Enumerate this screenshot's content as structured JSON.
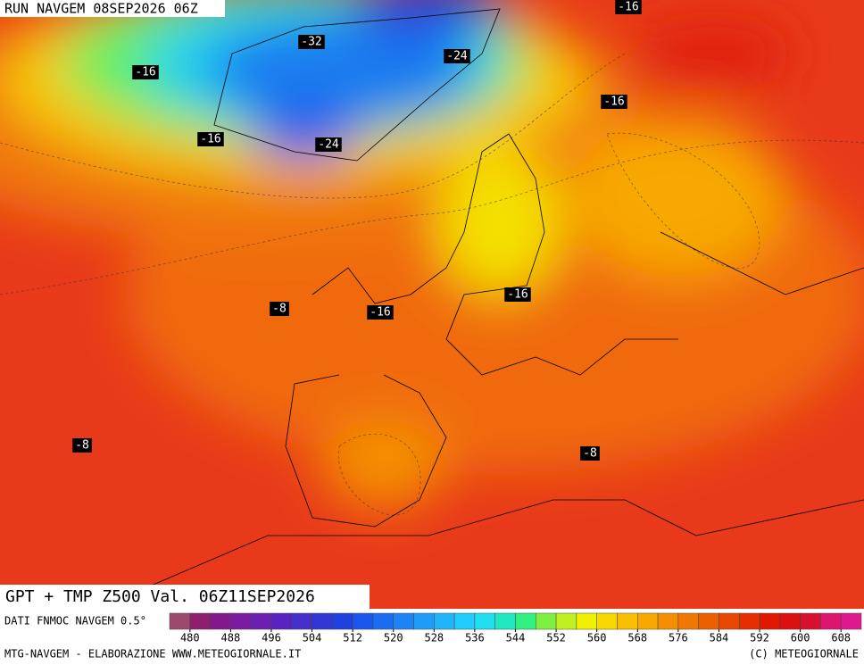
{
  "header": {
    "title": "RUN NAVGEM 08SEP2026 06Z"
  },
  "map": {
    "contour_labels": [
      -16,
      -32,
      -24,
      -16,
      -16,
      -16,
      -24,
      -16,
      -8,
      -16,
      -8,
      -8
    ]
  },
  "panel": {
    "title": "GPT + TMP Z500 Val. 06Z11SEP2026"
  },
  "legend": {
    "title": "DATI FNMOC NAVGEM 0.5°",
    "lim": [
      476,
      612
    ],
    "ticks": [
      480,
      488,
      496,
      504,
      512,
      520,
      528,
      536,
      544,
      552,
      560,
      568,
      576,
      584,
      592,
      600,
      608
    ],
    "colors": [
      "#9b4a6e",
      "#8e1f6e",
      "#82188a",
      "#7a1aa0",
      "#6a1fb0",
      "#5a22c0",
      "#4630cc",
      "#3236d4",
      "#2040e0",
      "#1a55ec",
      "#1a6cf0",
      "#1c84f4",
      "#1e9cf8",
      "#20b4fa",
      "#22ccfc",
      "#20e0f0",
      "#20e8c0",
      "#30f080",
      "#80f040",
      "#c0f020",
      "#f0f000",
      "#f8d800",
      "#f8c000",
      "#f8a800",
      "#f49000",
      "#f07800",
      "#ec6000",
      "#e84800",
      "#e43000",
      "#e01800",
      "#dc1010",
      "#d81030",
      "#dc1470",
      "#e01890"
    ]
  },
  "footer": {
    "left": "MTG-NAVGEM - ELABORAZIONE WWW.METEOGIORNALE.IT",
    "right": "(C) METEOGIORNALE"
  }
}
